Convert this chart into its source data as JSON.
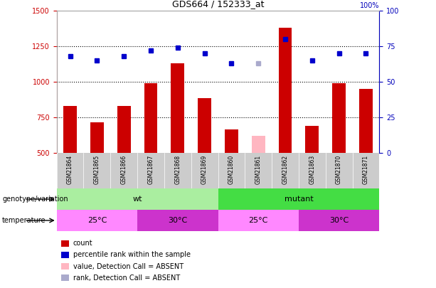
{
  "title": "GDS664 / 152333_at",
  "samples": [
    "GSM21864",
    "GSM21865",
    "GSM21866",
    "GSM21867",
    "GSM21868",
    "GSM21869",
    "GSM21860",
    "GSM21861",
    "GSM21862",
    "GSM21863",
    "GSM21870",
    "GSM21871"
  ],
  "counts": [
    830,
    715,
    830,
    990,
    1130,
    885,
    665,
    620,
    1380,
    690,
    990,
    950
  ],
  "ranks": [
    68,
    65,
    68,
    72,
    74,
    70,
    63,
    63,
    80,
    65,
    70,
    70
  ],
  "absent_idx": 7,
  "ylim_left": [
    500,
    1500
  ],
  "ylim_right": [
    0,
    100
  ],
  "yticks_left": [
    500,
    750,
    1000,
    1250,
    1500
  ],
  "yticks_right": [
    0,
    25,
    50,
    75,
    100
  ],
  "bar_color": "#CC0000",
  "absent_bar_color": "#FFB6C1",
  "dot_color": "#0000CC",
  "absent_dot_color": "#AAAACC",
  "genotype_groups": [
    {
      "label": "wt",
      "start": 0,
      "end": 6,
      "color": "#AAEEA A"
    },
    {
      "label": "mutant",
      "start": 6,
      "end": 12,
      "color": "#44DD44"
    }
  ],
  "temp_groups": [
    {
      "label": "25°C",
      "start": 0,
      "end": 3,
      "color": "#FF88FF"
    },
    {
      "label": "30°C",
      "start": 3,
      "end": 6,
      "color": "#CC33CC"
    },
    {
      "label": "25°C",
      "start": 6,
      "end": 9,
      "color": "#FF88FF"
    },
    {
      "label": "30°C",
      "start": 9,
      "end": 12,
      "color": "#CC33CC"
    }
  ],
  "legend_items": [
    {
      "label": "count",
      "color": "#CC0000"
    },
    {
      "label": "percentile rank within the sample",
      "color": "#0000CC"
    },
    {
      "label": "value, Detection Call = ABSENT",
      "color": "#FFB6C1"
    },
    {
      "label": "rank, Detection Call = ABSENT",
      "color": "#AAAACC"
    }
  ],
  "left_axis_color": "#CC0000",
  "right_axis_color": "#0000BB",
  "plot_bg": "#FFFFFF",
  "tick_area_bg": "#DDDDDD",
  "grid_yticks": [
    750,
    1000,
    1250
  ]
}
